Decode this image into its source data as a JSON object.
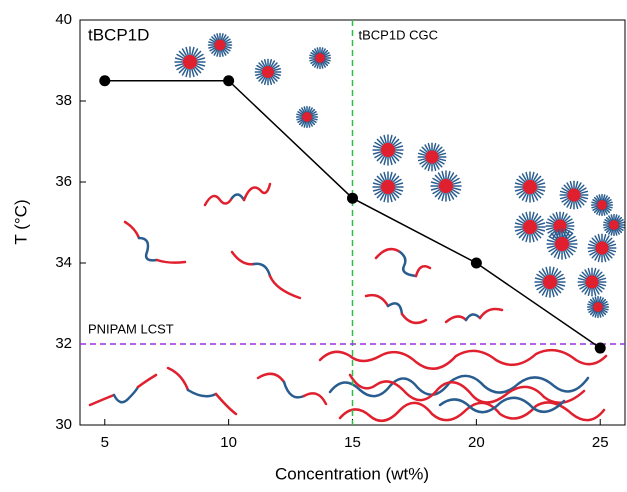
{
  "chart_data": {
    "type": "line",
    "title": "tBCP1D",
    "x_label": "Concentration (wt%)",
    "y_label": "T (°C)",
    "x": [
      5,
      10,
      15,
      20,
      25
    ],
    "series": [
      {
        "name": "tBCP1D",
        "color": "#000000",
        "values": [
          38.5,
          38.5,
          35.6,
          34,
          31.9
        ]
      }
    ],
    "xlim": [
      4,
      26
    ],
    "ylim": [
      30,
      40
    ],
    "xticks": [
      5,
      10,
      15,
      20,
      25
    ],
    "yticks": [
      30,
      32,
      34,
      36,
      38,
      40
    ],
    "reference_lines": [
      {
        "label": "tBCP1D CGC",
        "axis": "x",
        "value": 15,
        "color": "#2ebd45"
      },
      {
        "label": "PNIPAM LCST",
        "axis": "y",
        "value": 32,
        "color": "#9b30e0"
      }
    ]
  }
}
